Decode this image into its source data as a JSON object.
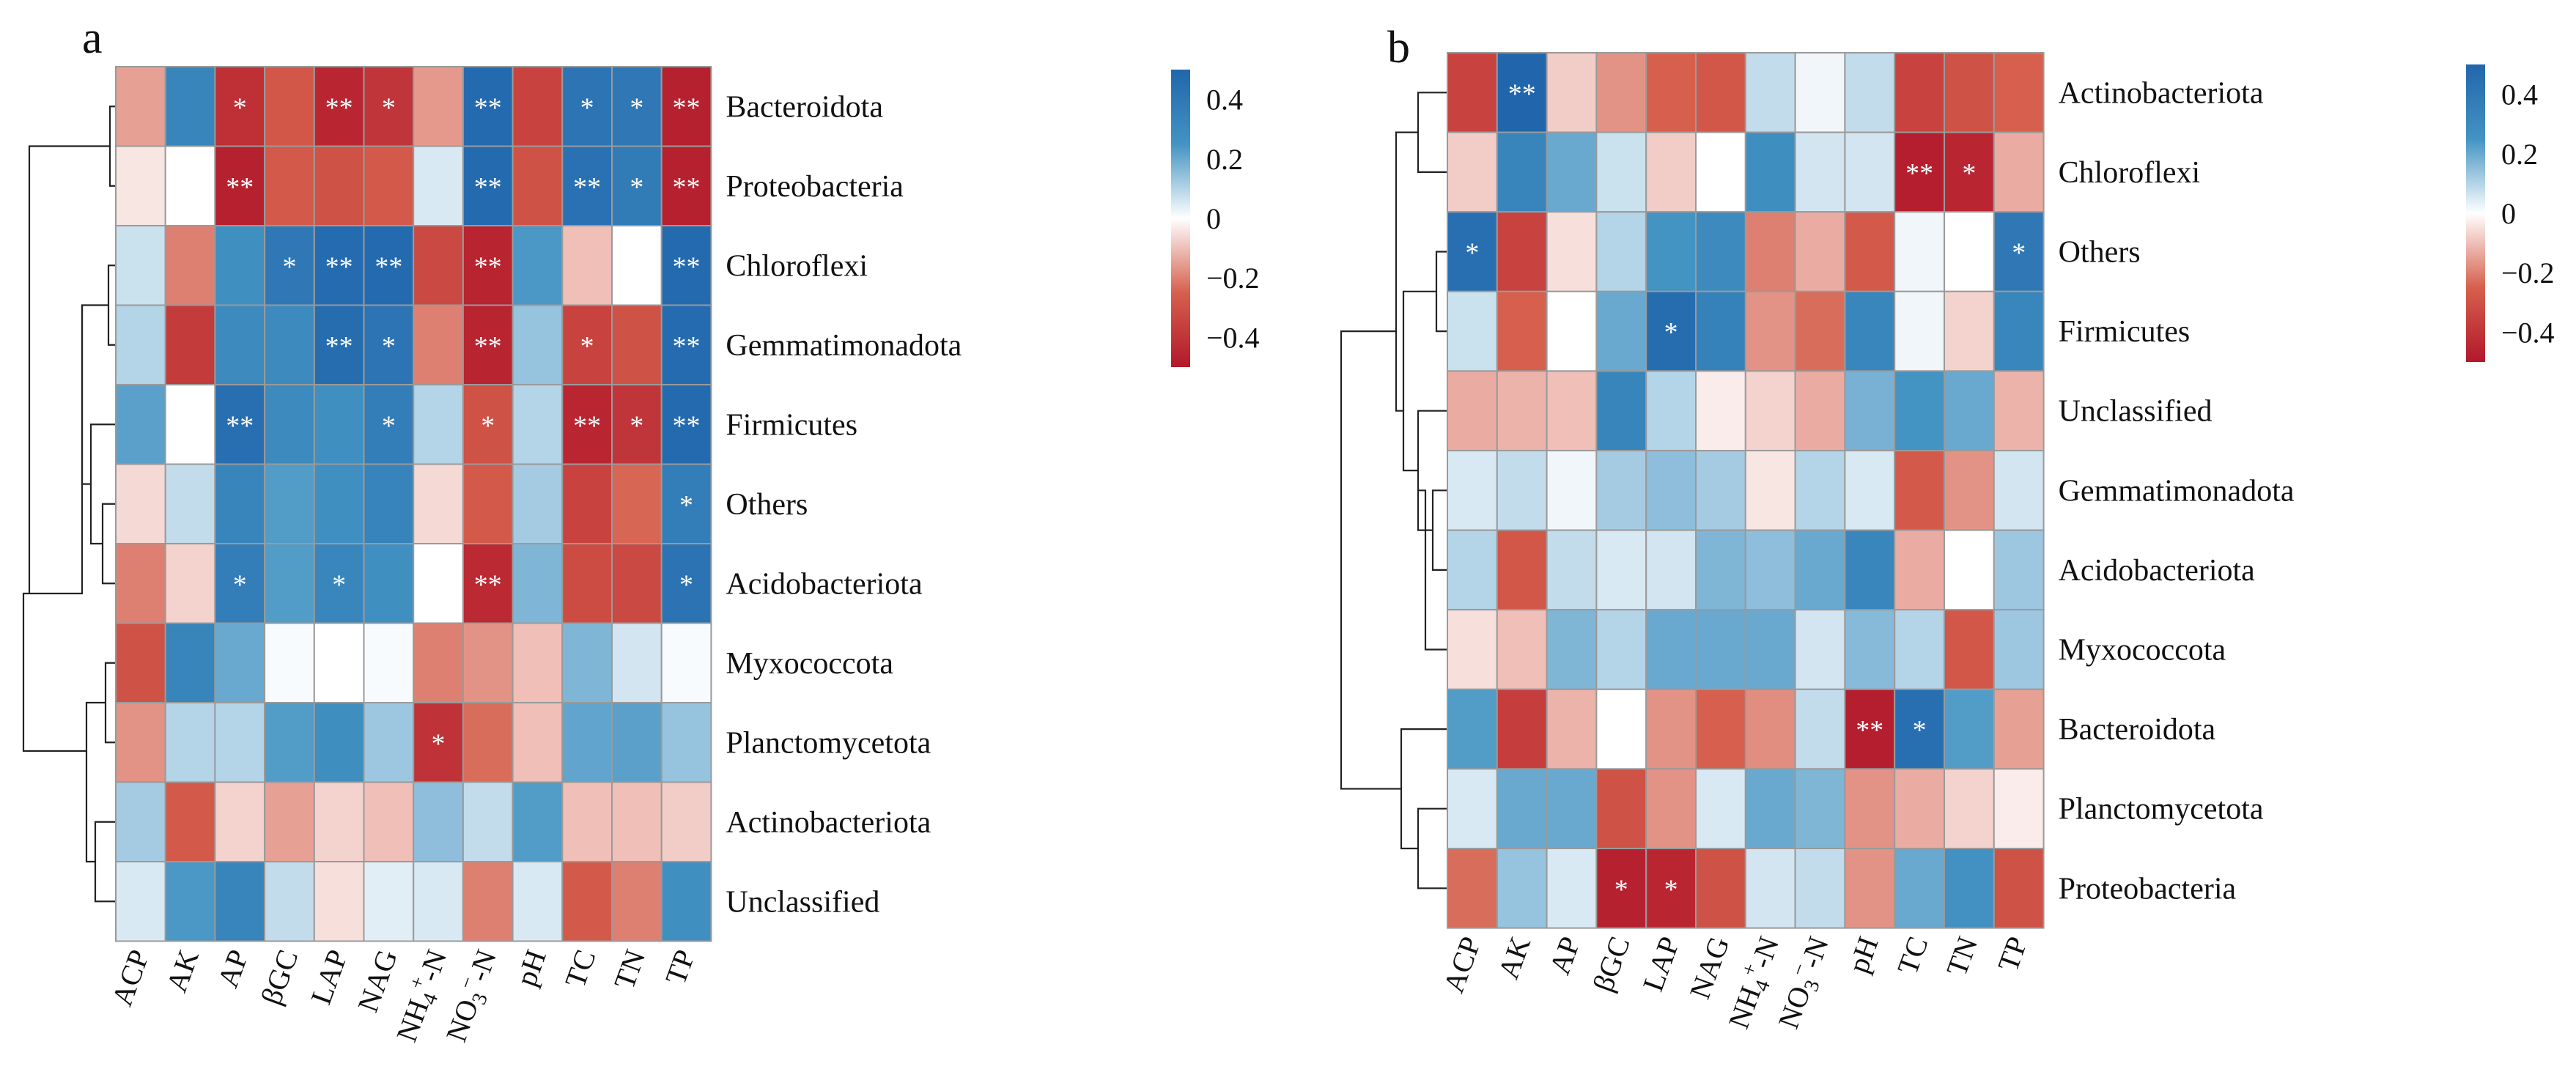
{
  "chart_data": [
    {
      "type": "heatmap",
      "panel": "a",
      "columns": [
        "ACP",
        "AK",
        "AP",
        "βGC",
        "LAP",
        "NAG",
        "NH4+-N",
        "NO3−-N",
        "pH",
        "TC",
        "TN",
        "TP"
      ],
      "rows": [
        "Bacteroidota",
        "Proteobacteria",
        "Chloroflexi",
        "Gemmatimonadota",
        "Firmicutes",
        "Others",
        "Acidobacteriota",
        "Myxococcota",
        "Planctomycetota",
        "Actinobacteriota",
        "Unclassified"
      ],
      "values": [
        [
          -0.15,
          0.33,
          -0.42,
          -0.28,
          -0.45,
          -0.4,
          -0.16,
          0.48,
          -0.35,
          0.42,
          0.4,
          -0.47
        ],
        [
          -0.04,
          0.0,
          -0.47,
          -0.27,
          -0.3,
          -0.27,
          0.05,
          0.48,
          -0.3,
          0.44,
          0.38,
          -0.47
        ],
        [
          0.07,
          -0.2,
          0.27,
          0.4,
          0.47,
          0.48,
          -0.33,
          -0.46,
          0.24,
          -0.1,
          0.0,
          0.48
        ],
        [
          0.1,
          -0.38,
          0.3,
          0.3,
          0.46,
          0.42,
          -0.2,
          -0.46,
          0.14,
          -0.35,
          -0.3,
          0.47
        ],
        [
          0.22,
          0.0,
          0.45,
          0.3,
          0.27,
          0.37,
          0.1,
          -0.3,
          0.1,
          -0.45,
          -0.4,
          0.48
        ],
        [
          -0.06,
          0.08,
          0.33,
          0.23,
          0.27,
          0.34,
          -0.06,
          -0.27,
          0.12,
          -0.35,
          -0.24,
          0.37
        ],
        [
          -0.2,
          -0.07,
          0.37,
          0.23,
          0.32,
          0.27,
          0.0,
          -0.44,
          0.17,
          -0.32,
          -0.33,
          0.43
        ],
        [
          -0.3,
          0.33,
          0.2,
          0.01,
          0.0,
          0.01,
          -0.2,
          -0.17,
          -0.1,
          0.17,
          0.06,
          0.01
        ],
        [
          -0.17,
          0.1,
          0.1,
          0.23,
          0.28,
          0.13,
          -0.41,
          -0.23,
          -0.1,
          0.21,
          0.22,
          0.14
        ],
        [
          0.12,
          -0.27,
          -0.07,
          -0.15,
          -0.07,
          -0.1,
          0.15,
          0.08,
          0.23,
          -0.1,
          -0.1,
          -0.08
        ],
        [
          0.05,
          0.24,
          0.33,
          0.08,
          -0.05,
          0.04,
          0.05,
          -0.2,
          0.05,
          -0.27,
          -0.2,
          0.27
        ]
      ],
      "significance": [
        [
          "",
          "",
          "*",
          "",
          "**",
          "*",
          "",
          "**",
          "",
          "*",
          "*",
          "**"
        ],
        [
          "",
          "",
          "**",
          "",
          "",
          "",
          "",
          "**",
          "",
          "**",
          "*",
          "**"
        ],
        [
          "",
          "",
          "",
          "*",
          "**",
          "**",
          "",
          "**",
          "",
          "",
          "",
          "**"
        ],
        [
          "",
          "",
          "",
          "",
          "**",
          "*",
          "",
          "**",
          "",
          "*",
          "",
          "**"
        ],
        [
          "",
          "",
          "**",
          "",
          "",
          "*",
          "",
          "*",
          "",
          "**",
          "*",
          "**"
        ],
        [
          "",
          "",
          "",
          "",
          "",
          "",
          "",
          "",
          "",
          "",
          "",
          "*"
        ],
        [
          "",
          "",
          "*",
          "",
          "*",
          "",
          "",
          "**",
          "",
          "",
          "",
          "*"
        ],
        [
          "",
          "",
          "",
          "",
          "",
          "",
          "",
          "",
          "",
          "",
          "",
          ""
        ],
        [
          "",
          "",
          "",
          "",
          "",
          "",
          "*",
          "",
          "",
          "",
          "",
          ""
        ],
        [
          "",
          "",
          "",
          "",
          "",
          "",
          "",
          "",
          "",
          "",
          "",
          ""
        ],
        [
          "",
          "",
          "",
          "",
          "",
          "",
          "",
          "",
          "",
          "",
          "",
          ""
        ]
      ],
      "colorbar": {
        "ticks": [
          "0.4",
          "0.2",
          "0",
          "−0.2",
          "−0.4"
        ],
        "range": [
          -0.5,
          0.5
        ]
      }
    },
    {
      "type": "heatmap",
      "panel": "b",
      "columns": [
        "ACP",
        "AK",
        "AP",
        "βGC",
        "LAP",
        "NAG",
        "NH4+-N",
        "NO3−-N",
        "pH",
        "TC",
        "TN",
        "TP"
      ],
      "rows": [
        "Actinobacteriota",
        "Chloroflexi",
        "Others",
        "Firmicutes",
        "Unclassified",
        "Gemmatimonadota",
        "Acidobacteriota",
        "Myxococcota",
        "Bacteroidota",
        "Planctomycetota",
        "Proteobacteria"
      ],
      "values": [
        [
          -0.35,
          0.5,
          -0.08,
          -0.17,
          -0.25,
          -0.28,
          0.08,
          0.02,
          0.08,
          -0.35,
          -0.3,
          -0.25
        ],
        [
          -0.08,
          0.33,
          0.2,
          0.07,
          -0.08,
          0.0,
          0.28,
          0.06,
          0.06,
          -0.48,
          -0.45,
          -0.13
        ],
        [
          0.45,
          -0.35,
          -0.05,
          0.1,
          0.25,
          0.3,
          -0.2,
          -0.13,
          -0.27,
          0.02,
          0.0,
          0.4
        ],
        [
          0.07,
          -0.25,
          0.0,
          0.2,
          0.46,
          0.35,
          -0.17,
          -0.23,
          0.32,
          0.02,
          -0.07,
          0.32
        ],
        [
          -0.13,
          -0.12,
          -0.1,
          0.33,
          0.1,
          -0.03,
          -0.07,
          -0.13,
          0.18,
          0.25,
          0.2,
          -0.12
        ],
        [
          0.05,
          0.08,
          0.02,
          0.12,
          0.15,
          0.12,
          -0.04,
          0.1,
          0.05,
          -0.27,
          -0.17,
          0.06
        ],
        [
          0.1,
          -0.28,
          0.08,
          0.05,
          0.06,
          0.17,
          0.15,
          0.2,
          0.32,
          -0.13,
          0.0,
          0.13
        ],
        [
          -0.05,
          -0.1,
          0.17,
          0.1,
          0.2,
          0.2,
          0.2,
          0.06,
          0.16,
          0.1,
          -0.28,
          0.13
        ],
        [
          0.23,
          -0.37,
          -0.12,
          0.0,
          -0.17,
          -0.25,
          -0.18,
          0.08,
          -0.48,
          0.45,
          0.23,
          -0.15
        ],
        [
          0.05,
          0.2,
          0.2,
          -0.3,
          -0.17,
          0.05,
          0.2,
          0.17,
          -0.17,
          -0.13,
          -0.07,
          -0.03
        ],
        [
          -0.23,
          0.14,
          0.05,
          -0.47,
          -0.45,
          -0.3,
          0.06,
          0.08,
          -0.17,
          0.2,
          0.26,
          -0.3
        ]
      ],
      "significance": [
        [
          "",
          "**",
          "",
          "",
          "",
          "",
          "",
          "",
          "",
          "",
          "",
          ""
        ],
        [
          "",
          "",
          "",
          "",
          "",
          "",
          "",
          "",
          "",
          "**",
          "*",
          ""
        ],
        [
          "*",
          "",
          "",
          "",
          "",
          "",
          "",
          "",
          "",
          "",
          "",
          "*"
        ],
        [
          "",
          "",
          "",
          "",
          "*",
          "",
          "",
          "",
          "",
          "",
          "",
          ""
        ],
        [
          "",
          "",
          "",
          "",
          "",
          "",
          "",
          "",
          "",
          "",
          "",
          ""
        ],
        [
          "",
          "",
          "",
          "",
          "",
          "",
          "",
          "",
          "",
          "",
          "",
          ""
        ],
        [
          "",
          "",
          "",
          "",
          "",
          "",
          "",
          "",
          "",
          "",
          "",
          ""
        ],
        [
          "",
          "",
          "",
          "",
          "",
          "",
          "",
          "",
          "",
          "",
          "",
          ""
        ],
        [
          "",
          "",
          "",
          "",
          "",
          "",
          "",
          "",
          "**",
          "*",
          "",
          ""
        ],
        [
          "",
          "",
          "",
          "",
          "",
          "",
          "",
          "",
          "",
          "",
          "",
          ""
        ],
        [
          "",
          "",
          "",
          "*",
          "*",
          "",
          "",
          "",
          "",
          "",
          "",
          ""
        ]
      ],
      "colorbar": {
        "ticks": [
          "0.4",
          "0.2",
          "0",
          "−0.2",
          "−0.4"
        ],
        "range": [
          -0.5,
          0.5
        ]
      }
    }
  ]
}
